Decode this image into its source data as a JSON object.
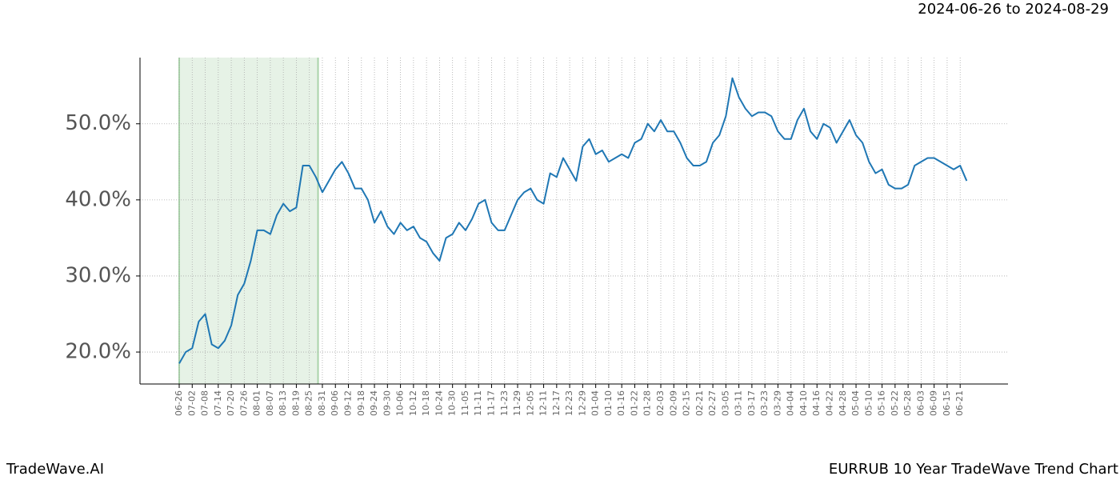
{
  "header": {
    "date_range": "2024-06-26 to 2024-08-29"
  },
  "footer": {
    "left": "TradeWave.AI",
    "right": "EURRUB 10 Year TradeWave Trend Chart"
  },
  "chart_data": {
    "type": "line",
    "color": "#1f77b4",
    "grid": true,
    "categories": [
      "06-26",
      null,
      "07-02",
      null,
      "07-08",
      null,
      "07-14",
      null,
      "07-20",
      null,
      "07-26",
      null,
      "08-01",
      null,
      "08-07",
      null,
      "08-13",
      null,
      "08-19",
      null,
      "08-25",
      null,
      "08-31",
      null,
      "09-06",
      null,
      "09-12",
      null,
      "09-18",
      null,
      "09-24",
      null,
      "09-30",
      null,
      "10-06",
      null,
      "10-12",
      null,
      "10-18",
      null,
      "10-24",
      null,
      "10-30",
      null,
      "11-05",
      null,
      "11-11",
      null,
      "11-17",
      null,
      "11-23",
      null,
      "11-29",
      null,
      "12-05",
      null,
      "12-11",
      null,
      "12-17",
      null,
      "12-23",
      null,
      "12-29",
      null,
      "01-04",
      null,
      "01-10",
      null,
      "01-16",
      null,
      "01-22",
      null,
      "01-28",
      null,
      "02-03",
      null,
      "02-09",
      null,
      "02-15",
      null,
      "02-21",
      null,
      "02-27",
      null,
      "03-05",
      null,
      "03-11",
      null,
      "03-17",
      null,
      "03-23",
      null,
      "03-29",
      null,
      "04-04",
      null,
      "04-10",
      null,
      "04-16",
      null,
      "04-22",
      null,
      "04-28",
      null,
      "05-04",
      null,
      "05-10",
      null,
      "05-16",
      null,
      "05-22",
      null,
      "05-28",
      null,
      "06-03",
      null,
      "06-09",
      null,
      "06-15",
      null,
      "06-21",
      null
    ],
    "values": [
      18.5,
      20,
      20.5,
      24,
      25,
      21,
      20.5,
      21.5,
      23.5,
      27.5,
      29,
      32,
      36,
      36,
      35.5,
      38,
      39.5,
      38.5,
      39,
      44.5,
      44.5,
      43,
      41,
      42.5,
      44,
      45,
      43.5,
      41.5,
      41.5,
      40,
      37,
      38.5,
      36.5,
      35.5,
      37,
      36,
      36.5,
      35,
      34.5,
      33,
      32,
      35,
      35.5,
      37,
      36,
      37.5,
      39.5,
      40,
      37,
      36,
      36,
      38,
      40,
      41,
      41.5,
      40,
      39.5,
      43.5,
      43,
      45.5,
      44,
      42.5,
      47,
      48,
      46,
      46.5,
      45,
      45.5,
      46,
      45.5,
      47.5,
      48,
      50,
      49,
      50.5,
      49,
      49,
      47.5,
      45.5,
      44.5,
      44.5,
      45,
      47.5,
      48.5,
      51,
      56,
      53.5,
      52,
      51,
      51.5,
      51.5,
      51,
      49,
      48,
      48,
      50.5,
      52,
      49,
      48,
      50,
      49.5,
      47.5,
      49,
      50.5,
      48.5,
      47.5,
      45,
      43.5,
      44,
      42,
      41.5,
      41.5,
      42,
      44.5,
      45,
      45.5,
      45.5,
      45,
      44.5,
      44,
      44.5,
      42.5
    ],
    "ylim": [
      15.8,
      58.7
    ],
    "yticks": [
      {
        "value": 20,
        "label": "20.0%"
      },
      {
        "value": 30,
        "label": "30.0%"
      },
      {
        "value": 40,
        "label": "40.0%"
      },
      {
        "value": 50,
        "label": "50.0%"
      }
    ]
  }
}
